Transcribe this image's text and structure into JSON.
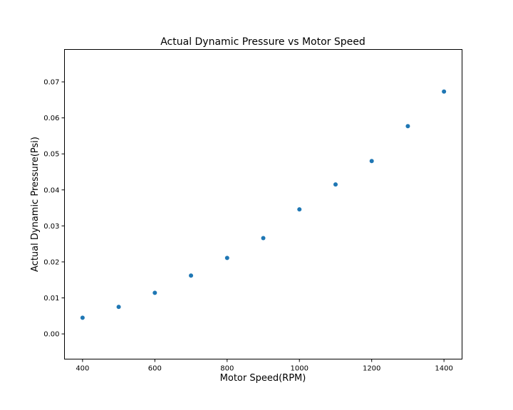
{
  "chart_data": {
    "type": "scatter",
    "title": "Actual Dynamic Pressure vs Motor Speed",
    "xlabel": "Motor Speed(RPM)",
    "ylabel": "Actual Dynamic Pressure(Psi)",
    "xlim": [
      350,
      1450
    ],
    "ylim": [
      -0.007,
      0.079
    ],
    "x_ticks": [
      400,
      600,
      800,
      1000,
      1200,
      1400
    ],
    "x_tick_labels": [
      "400",
      "600",
      "800",
      "1000",
      "1200",
      "1400"
    ],
    "y_ticks": [
      0.0,
      0.01,
      0.02,
      0.03,
      0.04,
      0.05,
      0.06,
      0.07
    ],
    "y_tick_labels": [
      "0.00",
      "0.01",
      "0.02",
      "0.03",
      "0.04",
      "0.05",
      "0.06",
      "0.07"
    ],
    "grid": false,
    "series": [
      {
        "color": "#1f77b4",
        "x": [
          400,
          500,
          600,
          700,
          800,
          900,
          1000,
          1100,
          1200,
          1300,
          1400
        ],
        "y": [
          0.0045,
          0.0075,
          0.0114,
          0.0162,
          0.0211,
          0.0266,
          0.0346,
          0.0415,
          0.048,
          0.0577,
          0.0673
        ]
      }
    ]
  }
}
